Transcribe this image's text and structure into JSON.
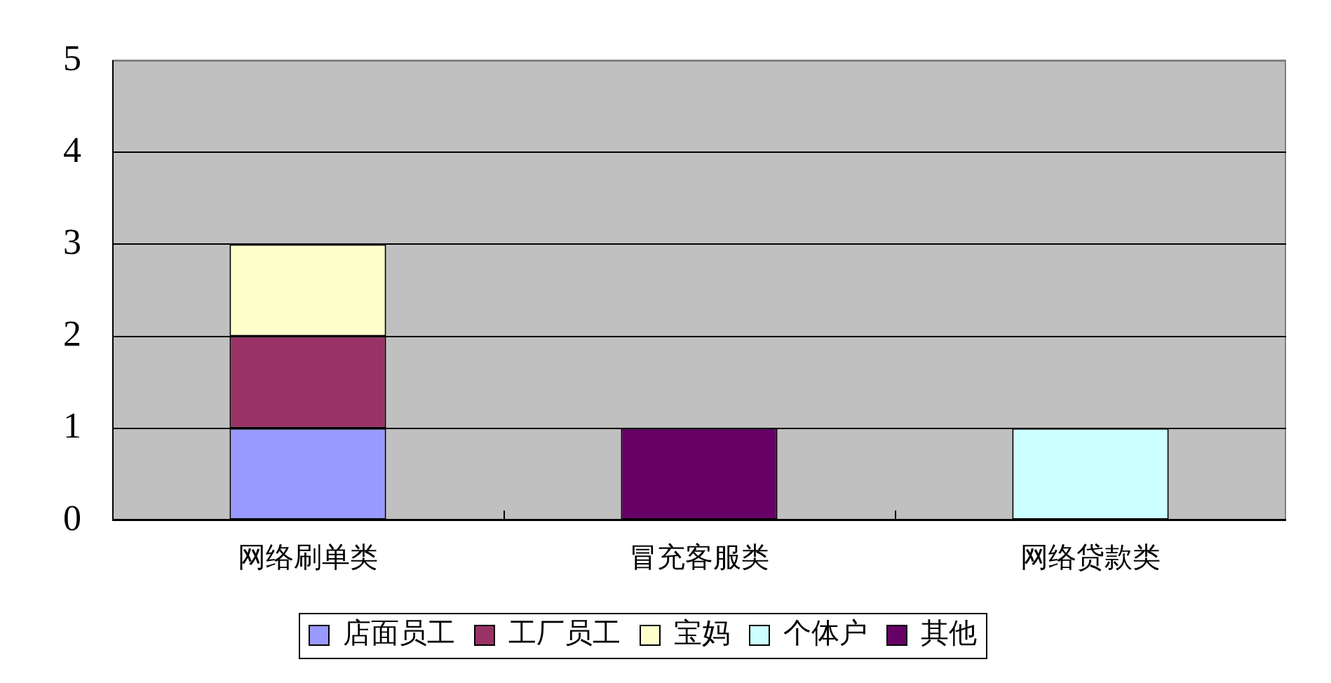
{
  "chart_data": {
    "type": "bar",
    "categories": [
      "网络刷单类",
      "冒充客服类",
      "网络贷款类"
    ],
    "series": [
      {
        "name": "店面员工",
        "color": "#9999ff",
        "values": [
          1,
          0,
          0
        ]
      },
      {
        "name": "工厂员工",
        "color": "#993366",
        "values": [
          1,
          0,
          0
        ]
      },
      {
        "name": "宝妈",
        "color": "#ffffcc",
        "values": [
          1,
          0,
          0
        ]
      },
      {
        "name": "个体户",
        "color": "#ccffff",
        "values": [
          0,
          0,
          1
        ]
      },
      {
        "name": "其他",
        "color": "#660066",
        "values": [
          0,
          1,
          0
        ]
      }
    ],
    "stacked": true,
    "ylim": [
      0,
      5
    ],
    "yticks": [
      0,
      1,
      2,
      3,
      4,
      5
    ],
    "grid": "y",
    "legend": "bottom"
  }
}
